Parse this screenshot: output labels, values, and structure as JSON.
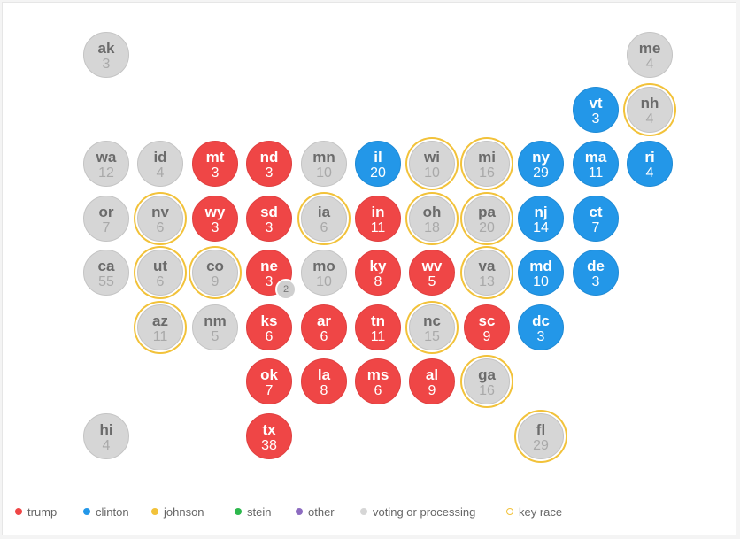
{
  "colors": {
    "trump": "#ef4646",
    "clinton": "#2397e8",
    "johnson": "#f2c23a",
    "stein": "#2db84d",
    "other": "#8c6bc0",
    "pending": "#d6d6d6",
    "key_race": "#f2c23a"
  },
  "states": [
    {
      "id": "ak",
      "votes": "3",
      "status": "pending",
      "key": false
    },
    {
      "id": "me",
      "votes": "4",
      "status": "pending",
      "key": false
    },
    {
      "id": "vt",
      "votes": "3",
      "status": "clinton",
      "key": false
    },
    {
      "id": "nh",
      "votes": "4",
      "status": "pending",
      "key": true
    },
    {
      "id": "wa",
      "votes": "12",
      "status": "pending",
      "key": false
    },
    {
      "id": "id",
      "votes": "4",
      "status": "pending",
      "key": false
    },
    {
      "id": "mt",
      "votes": "3",
      "status": "trump",
      "key": false
    },
    {
      "id": "nd",
      "votes": "3",
      "status": "trump",
      "key": false
    },
    {
      "id": "mn",
      "votes": "10",
      "status": "pending",
      "key": false
    },
    {
      "id": "il",
      "votes": "20",
      "status": "clinton",
      "key": false
    },
    {
      "id": "wi",
      "votes": "10",
      "status": "pending",
      "key": true
    },
    {
      "id": "mi",
      "votes": "16",
      "status": "pending",
      "key": true
    },
    {
      "id": "ny",
      "votes": "29",
      "status": "clinton",
      "key": false
    },
    {
      "id": "ma",
      "votes": "11",
      "status": "clinton",
      "key": false
    },
    {
      "id": "ri",
      "votes": "4",
      "status": "clinton",
      "key": false
    },
    {
      "id": "or",
      "votes": "7",
      "status": "pending",
      "key": false
    },
    {
      "id": "nv",
      "votes": "6",
      "status": "pending",
      "key": true
    },
    {
      "id": "wy",
      "votes": "3",
      "status": "trump",
      "key": false
    },
    {
      "id": "sd",
      "votes": "3",
      "status": "trump",
      "key": false
    },
    {
      "id": "ia",
      "votes": "6",
      "status": "pending",
      "key": true
    },
    {
      "id": "in",
      "votes": "11",
      "status": "trump",
      "key": false
    },
    {
      "id": "oh",
      "votes": "18",
      "status": "pending",
      "key": true
    },
    {
      "id": "pa",
      "votes": "20",
      "status": "pending",
      "key": true
    },
    {
      "id": "nj",
      "votes": "14",
      "status": "clinton",
      "key": false
    },
    {
      "id": "ct",
      "votes": "7",
      "status": "clinton",
      "key": false
    },
    {
      "id": "ca",
      "votes": "55",
      "status": "pending",
      "key": false
    },
    {
      "id": "ut",
      "votes": "6",
      "status": "pending",
      "key": true
    },
    {
      "id": "co",
      "votes": "9",
      "status": "pending",
      "key": true
    },
    {
      "id": "ne",
      "votes": "3",
      "status": "trump",
      "key": false,
      "badge": "2"
    },
    {
      "id": "mo",
      "votes": "10",
      "status": "pending",
      "key": false
    },
    {
      "id": "ky",
      "votes": "8",
      "status": "trump",
      "key": false
    },
    {
      "id": "wv",
      "votes": "5",
      "status": "trump",
      "key": false
    },
    {
      "id": "va",
      "votes": "13",
      "status": "pending",
      "key": true
    },
    {
      "id": "md",
      "votes": "10",
      "status": "clinton",
      "key": false
    },
    {
      "id": "de",
      "votes": "3",
      "status": "clinton",
      "key": false
    },
    {
      "id": "az",
      "votes": "11",
      "status": "pending",
      "key": true
    },
    {
      "id": "nm",
      "votes": "5",
      "status": "pending",
      "key": false
    },
    {
      "id": "ks",
      "votes": "6",
      "status": "trump",
      "key": false
    },
    {
      "id": "ar",
      "votes": "6",
      "status": "trump",
      "key": false
    },
    {
      "id": "tn",
      "votes": "11",
      "status": "trump",
      "key": false
    },
    {
      "id": "nc",
      "votes": "15",
      "status": "pending",
      "key": true
    },
    {
      "id": "sc",
      "votes": "9",
      "status": "trump",
      "key": false
    },
    {
      "id": "dc",
      "votes": "3",
      "status": "clinton",
      "key": false
    },
    {
      "id": "ok",
      "votes": "7",
      "status": "trump",
      "key": false
    },
    {
      "id": "la",
      "votes": "8",
      "status": "trump",
      "key": false
    },
    {
      "id": "ms",
      "votes": "6",
      "status": "trump",
      "key": false
    },
    {
      "id": "al",
      "votes": "9",
      "status": "trump",
      "key": false
    },
    {
      "id": "ga",
      "votes": "16",
      "status": "pending",
      "key": true
    },
    {
      "id": "hi",
      "votes": "4",
      "status": "pending",
      "key": false
    },
    {
      "id": "tx",
      "votes": "38",
      "status": "trump",
      "key": false
    },
    {
      "id": "fl",
      "votes": "29",
      "status": "pending",
      "key": true
    }
  ],
  "legend": [
    {
      "key": "trump",
      "label": "trump"
    },
    {
      "key": "clinton",
      "label": "clinton"
    },
    {
      "key": "johnson",
      "label": "johnson"
    },
    {
      "key": "stein",
      "label": "stein"
    },
    {
      "key": "other",
      "label": "other"
    },
    {
      "key": "pending",
      "label": "voting or processing"
    },
    {
      "key": "key_race",
      "label": "key race"
    }
  ]
}
